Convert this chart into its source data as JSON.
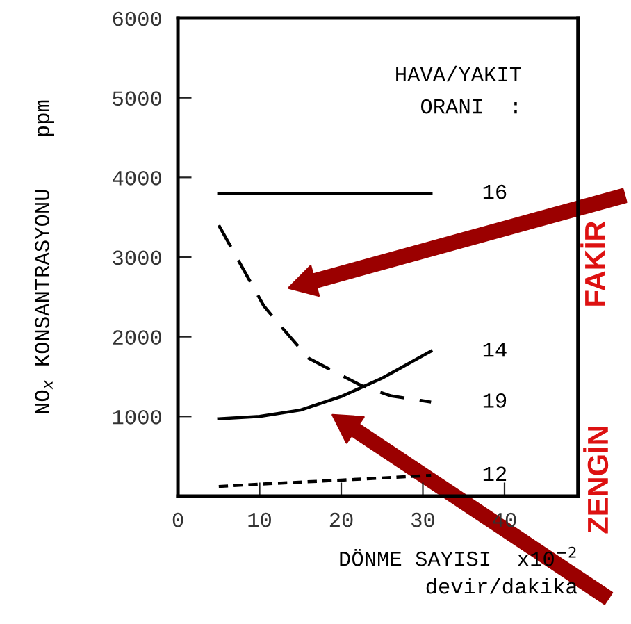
{
  "chart_data": {
    "type": "line",
    "xlabel": "DÖNME SAYISI  x10$^{−2}$\ndevir/dakika",
    "ylabel": "NO$_{x}$ KONSANTRASYONU    ppm",
    "legend_title": "HAVA/YAKIT\nORANI  :",
    "xlim": [
      0,
      49
    ],
    "ylim": [
      0,
      6000
    ],
    "xticks": [
      0,
      10,
      20,
      30,
      40
    ],
    "yticks": [
      {
        "value": 0,
        "label": null
      },
      1000,
      2000,
      3000,
      4000,
      5000,
      6000
    ],
    "grid": false,
    "marker": "none",
    "legend": false,
    "series": [
      {
        "name": "16",
        "color": "#000000",
        "line_style": "solid",
        "x": [
          5,
          31
        ],
        "values": [
          3800,
          3800
        ]
      },
      {
        "name": "14",
        "color": "#000000",
        "line_style": "solid",
        "x": [
          5,
          10,
          15,
          20,
          25,
          31
        ],
        "values": [
          970,
          1000,
          1080,
          1250,
          1480,
          1820
        ]
      },
      {
        "name": "19",
        "color": "#000000",
        "line_style": "dashed",
        "x": [
          5,
          10.5,
          12.2,
          16,
          22.4,
          26,
          31
        ],
        "values": [
          3400,
          2390,
          2180,
          1730,
          1390,
          1260,
          1180
        ]
      },
      {
        "name": "12",
        "color": "#000000",
        "line_style": "dotted",
        "x": [
          5,
          10,
          20,
          31
        ],
        "values": [
          120,
          150,
          200,
          260
        ]
      }
    ],
    "annotations": [
      "FAKİR",
      "ZENGİN"
    ]
  }
}
